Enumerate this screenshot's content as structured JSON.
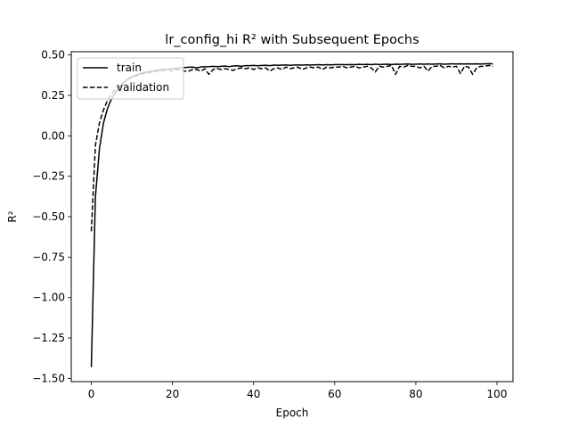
{
  "chart_data": {
    "type": "line",
    "title": "lr_config_hi R² with Subsequent Epochs",
    "xlabel": "Epoch",
    "ylabel": "R²",
    "xlim": [
      -4.95,
      103.95
    ],
    "ylim": [
      -1.52,
      0.52
    ],
    "xticks": [
      0,
      20,
      40,
      60,
      80,
      100
    ],
    "yticks": [
      0.5,
      0.25,
      0.0,
      -0.25,
      -0.5,
      -0.75,
      -1.0,
      -1.25,
      -1.5
    ],
    "ytick_labels": [
      "0.50",
      "0.25",
      "0.00",
      "−0.25",
      "−0.50",
      "−0.75",
      "−1.00",
      "−1.25",
      "−1.50"
    ],
    "grid": false,
    "legend_position": "upper-left",
    "series": [
      {
        "name": "train",
        "style": "solid",
        "x": [
          0,
          1,
          2,
          3,
          4,
          5,
          6,
          7,
          8,
          9,
          10,
          11,
          12,
          13,
          14,
          15,
          16,
          17,
          18,
          19,
          20,
          21,
          22,
          23,
          24,
          25,
          26,
          27,
          28,
          29,
          30,
          31,
          32,
          33,
          34,
          35,
          36,
          37,
          38,
          39,
          40,
          41,
          42,
          43,
          44,
          45,
          46,
          47,
          48,
          49,
          50,
          51,
          52,
          53,
          54,
          55,
          56,
          57,
          58,
          59,
          60,
          61,
          62,
          63,
          64,
          65,
          66,
          67,
          68,
          69,
          70,
          71,
          72,
          73,
          74,
          75,
          76,
          77,
          78,
          79,
          80,
          81,
          82,
          83,
          84,
          85,
          86,
          87,
          88,
          89,
          90,
          91,
          92,
          93,
          94,
          95,
          96,
          97,
          98,
          99
        ],
        "y": [
          -1.43,
          -0.38,
          -0.08,
          0.08,
          0.17,
          0.23,
          0.27,
          0.3,
          0.33,
          0.35,
          0.365,
          0.375,
          0.385,
          0.392,
          0.397,
          0.4,
          0.405,
          0.408,
          0.41,
          0.412,
          0.415,
          0.418,
          0.42,
          0.422,
          0.424,
          0.425,
          0.42,
          0.426,
          0.427,
          0.428,
          0.43,
          0.428,
          0.43,
          0.431,
          0.428,
          0.432,
          0.433,
          0.43,
          0.434,
          0.434,
          0.435,
          0.433,
          0.435,
          0.436,
          0.434,
          0.437,
          0.436,
          0.437,
          0.438,
          0.436,
          0.438,
          0.438,
          0.437,
          0.439,
          0.438,
          0.439,
          0.44,
          0.438,
          0.44,
          0.439,
          0.44,
          0.441,
          0.44,
          0.44,
          0.441,
          0.44,
          0.442,
          0.441,
          0.442,
          0.44,
          0.443,
          0.441,
          0.442,
          0.443,
          0.441,
          0.443,
          0.442,
          0.443,
          0.444,
          0.442,
          0.443,
          0.444,
          0.443,
          0.444,
          0.443,
          0.444,
          0.445,
          0.443,
          0.444,
          0.445,
          0.444,
          0.445,
          0.444,
          0.445,
          0.444,
          0.445,
          0.444,
          0.445,
          0.446,
          0.445
        ]
      },
      {
        "name": "validation",
        "style": "dashed",
        "x": [
          0,
          1,
          2,
          3,
          4,
          5,
          6,
          7,
          8,
          9,
          10,
          11,
          12,
          13,
          14,
          15,
          16,
          17,
          18,
          19,
          20,
          21,
          22,
          23,
          24,
          25,
          26,
          27,
          28,
          29,
          30,
          31,
          32,
          33,
          34,
          35,
          36,
          37,
          38,
          39,
          40,
          41,
          42,
          43,
          44,
          45,
          46,
          47,
          48,
          49,
          50,
          51,
          52,
          53,
          54,
          55,
          56,
          57,
          58,
          59,
          60,
          61,
          62,
          63,
          64,
          65,
          66,
          67,
          68,
          69,
          70,
          71,
          72,
          73,
          74,
          75,
          76,
          77,
          78,
          79,
          80,
          81,
          82,
          83,
          84,
          85,
          86,
          87,
          88,
          89,
          90,
          91,
          92,
          93,
          94,
          95,
          96,
          97,
          98,
          99
        ],
        "y": [
          -0.59,
          -0.06,
          0.08,
          0.16,
          0.22,
          0.26,
          0.29,
          0.31,
          0.33,
          0.35,
          0.36,
          0.37,
          0.38,
          0.385,
          0.39,
          0.395,
          0.4,
          0.4,
          0.405,
          0.41,
          0.4,
          0.41,
          0.41,
          0.4,
          0.4,
          0.41,
          0.41,
          0.4,
          0.415,
          0.38,
          0.41,
          0.415,
          0.41,
          0.415,
          0.41,
          0.405,
          0.415,
          0.42,
          0.415,
          0.42,
          0.41,
          0.42,
          0.415,
          0.42,
          0.4,
          0.415,
          0.42,
          0.41,
          0.425,
          0.415,
          0.42,
          0.425,
          0.41,
          0.42,
          0.425,
          0.42,
          0.425,
          0.41,
          0.425,
          0.42,
          0.425,
          0.425,
          0.43,
          0.42,
          0.425,
          0.43,
          0.42,
          0.425,
          0.43,
          0.42,
          0.395,
          0.43,
          0.425,
          0.43,
          0.435,
          0.38,
          0.43,
          0.425,
          0.435,
          0.43,
          0.43,
          0.42,
          0.43,
          0.4,
          0.43,
          0.43,
          0.435,
          0.42,
          0.43,
          0.425,
          0.43,
          0.385,
          0.43,
          0.425,
          0.38,
          0.42,
          0.43,
          0.43,
          0.435,
          0.43
        ]
      }
    ]
  }
}
